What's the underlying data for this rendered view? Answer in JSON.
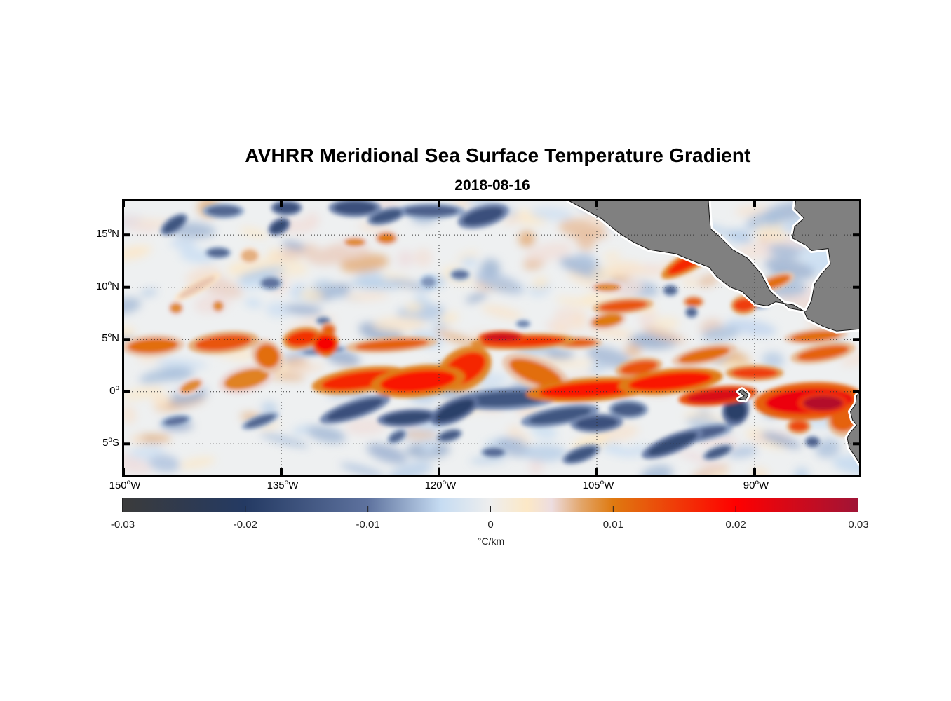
{
  "title": "AVHRR Meridional Sea Surface Temperature Gradient",
  "subtitle": "2018-08-16",
  "chart_data": {
    "type": "heatmap",
    "title": "AVHRR Meridional Sea Surface Temperature Gradient",
    "subtitle": "2018-08-16",
    "projection": "equirectangular",
    "lon_range": [
      -150,
      -80
    ],
    "lat_range": [
      -8,
      18.3
    ],
    "grid": true,
    "x_ticks": [
      {
        "value": -150,
        "num": "150",
        "hemi": "W"
      },
      {
        "value": -135,
        "num": "135",
        "hemi": "W"
      },
      {
        "value": -120,
        "num": "120",
        "hemi": "W"
      },
      {
        "value": -105,
        "num": "105",
        "hemi": "W"
      },
      {
        "value": -90,
        "num": "90",
        "hemi": "W"
      }
    ],
    "y_ticks": [
      {
        "value": 15,
        "num": "15",
        "hemi": "N"
      },
      {
        "value": 10,
        "num": "10",
        "hemi": "N"
      },
      {
        "value": 5,
        "num": "5",
        "hemi": "N"
      },
      {
        "value": 0,
        "num": "0",
        "hemi": ""
      },
      {
        "value": -5,
        "num": "5",
        "hemi": "S"
      }
    ],
    "colorbar": {
      "range": [
        -0.03,
        0.03
      ],
      "ticks": [
        "-0.03",
        "-0.02",
        "-0.01",
        "0",
        "0.01",
        "0.02",
        "0.03"
      ],
      "tick_values": [
        -0.03,
        -0.02,
        -0.01,
        0,
        0.01,
        0.02,
        0.03
      ],
      "label": "°C/km",
      "colormap": [
        [
          -0.03,
          "#3b3b3b"
        ],
        [
          -0.02,
          "#243a63"
        ],
        [
          -0.01,
          "#5e729e"
        ],
        [
          -0.004,
          "#c6dcf2"
        ],
        [
          0,
          "#eeeeee"
        ],
        [
          0.003,
          "#fce8c6"
        ],
        [
          0.005,
          "#eddde0"
        ],
        [
          0.0075,
          "#e2a467"
        ],
        [
          0.01,
          "#df7a10"
        ],
        [
          0.02,
          "#ff0000"
        ],
        [
          0.03,
          "#a01436"
        ]
      ]
    },
    "land_color": "#808080",
    "land": [
      [
        [
          -107.7,
          18.3
        ],
        [
          -104.6,
          16.6
        ],
        [
          -102.9,
          15.2
        ],
        [
          -101.5,
          14.3
        ],
        [
          -100.0,
          13.6
        ],
        [
          -97.5,
          13.2
        ],
        [
          -95.6,
          12.4
        ],
        [
          -94.3,
          11.9
        ],
        [
          -93.6,
          11.0
        ],
        [
          -92.3,
          10.0
        ],
        [
          -91.2,
          9.6
        ],
        [
          -89.9,
          8.4
        ],
        [
          -88.8,
          8.2
        ],
        [
          -88.0,
          8.6
        ],
        [
          -86.3,
          8.3
        ],
        [
          -85.3,
          7.7
        ],
        [
          -85.0,
          7.0
        ],
        [
          -83.4,
          6.2
        ],
        [
          -82.2,
          5.8
        ],
        [
          -80.0,
          6.0
        ],
        [
          -80.0,
          18.3
        ],
        [
          -86.1,
          18.3
        ],
        [
          -86.2,
          17.5
        ],
        [
          -85.3,
          16.6
        ],
        [
          -86.2,
          15.8
        ],
        [
          -86.4,
          14.7
        ],
        [
          -85.1,
          14.0
        ],
        [
          -84.6,
          13.5
        ],
        [
          -83.9,
          13.6
        ],
        [
          -83.0,
          13.7
        ],
        [
          -82.8,
          12.2
        ],
        [
          -83.6,
          11.3
        ],
        [
          -84.3,
          10.3
        ],
        [
          -84.6,
          8.7
        ],
        [
          -85.1,
          7.7
        ],
        [
          -86.7,
          8.0
        ],
        [
          -88.5,
          9.6
        ],
        [
          -89.4,
          11.3
        ],
        [
          -90.7,
          12.8
        ],
        [
          -92.1,
          13.6
        ],
        [
          -93.4,
          14.9
        ],
        [
          -94.2,
          15.6
        ],
        [
          -94.3,
          16.8
        ],
        [
          -94.4,
          18.3
        ]
      ],
      [
        [
          -80.0,
          0.0
        ],
        [
          -80.3,
          -0.4
        ],
        [
          -80.4,
          -1.2
        ],
        [
          -80.9,
          -1.9
        ],
        [
          -80.7,
          -2.7
        ],
        [
          -80.3,
          -3.2
        ],
        [
          -80.9,
          -3.9
        ],
        [
          -81.2,
          -4.4
        ],
        [
          -81.0,
          -5.4
        ],
        [
          -80.5,
          -6.1
        ],
        [
          -80.2,
          -6.6
        ],
        [
          -80.0,
          -6.9
        ]
      ],
      [
        [
          -91.2,
          0.2
        ],
        [
          -90.6,
          -0.3
        ],
        [
          -90.9,
          -0.8
        ],
        [
          -91.5,
          -0.7
        ],
        [
          -91.0,
          -0.4
        ],
        [
          -91.5,
          0.0
        ]
      ]
    ],
    "blobs": [
      {
        "lon": -147.2,
        "lat": 4.4,
        "rx": 2.4,
        "ry": 0.7,
        "rot": -3,
        "v": 0.011
      },
      {
        "lon": -140.5,
        "lat": 4.7,
        "rx": 2.7,
        "ry": 0.7,
        "rot": -6,
        "v": 0.013
      },
      {
        "lon": -136.3,
        "lat": 3.4,
        "rx": 1.1,
        "ry": 1.2,
        "rot": -40,
        "v": 0.011
      },
      {
        "lon": -138.3,
        "lat": 1.2,
        "rx": 2.2,
        "ry": 0.9,
        "rot": -14,
        "v": 0.0095
      },
      {
        "lon": -143.6,
        "lat": 0.5,
        "rx": 1.1,
        "ry": 0.5,
        "rot": -25,
        "v": 0.009
      },
      {
        "lon": -133.0,
        "lat": 5.1,
        "rx": 1.5,
        "ry": 0.7,
        "rot": -10,
        "v": 0.016
      },
      {
        "lon": -130.8,
        "lat": 4.6,
        "rx": 1.0,
        "ry": 0.8,
        "rot": 0,
        "v": 0.021
      },
      {
        "lon": -130.5,
        "lat": 5.9,
        "rx": 0.6,
        "ry": 0.5,
        "rot": 0,
        "v": 0.012
      },
      {
        "lon": -124.5,
        "lat": 4.5,
        "rx": 3.5,
        "ry": 0.5,
        "rot": -4,
        "v": 0.012
      },
      {
        "lon": -127.5,
        "lat": 1.1,
        "rx": 3.7,
        "ry": 0.8,
        "rot": -8,
        "v": 0.017
      },
      {
        "lon": -122.0,
        "lat": 1.0,
        "rx": 3.6,
        "ry": 1.0,
        "rot": -6,
        "v": 0.018
      },
      {
        "lon": -117.6,
        "lat": 2.2,
        "rx": 2.2,
        "ry": 1.3,
        "rot": -30,
        "v": 0.017
      },
      {
        "lon": -112.0,
        "lat": 4.8,
        "rx": 4.0,
        "ry": 0.5,
        "rot": -2,
        "v": 0.016
      },
      {
        "lon": -114.0,
        "lat": 5.2,
        "rx": 1.8,
        "ry": 0.4,
        "rot": 0,
        "v": 0.025
      },
      {
        "lon": -107.0,
        "lat": 4.7,
        "rx": 2.0,
        "ry": 0.4,
        "rot": 0,
        "v": 0.012
      },
      {
        "lon": -110.8,
        "lat": 1.8,
        "rx": 2.7,
        "ry": 1.0,
        "rot": 22,
        "v": 0.011
      },
      {
        "lon": -105.5,
        "lat": 0.2,
        "rx": 5.0,
        "ry": 0.75,
        "rot": -4,
        "v": 0.018
      },
      {
        "lon": -98.0,
        "lat": 1.0,
        "rx": 4.0,
        "ry": 0.8,
        "rot": -6,
        "v": 0.018
      },
      {
        "lon": -101.0,
        "lat": 2.3,
        "rx": 1.8,
        "ry": 0.6,
        "rot": -10,
        "v": 0.013
      },
      {
        "lon": -93.5,
        "lat": -0.4,
        "rx": 3.0,
        "ry": 0.6,
        "rot": -6,
        "v": 0.024
      },
      {
        "lon": -90.0,
        "lat": 1.8,
        "rx": 2.2,
        "ry": 0.5,
        "rot": 0,
        "v": 0.015
      },
      {
        "lon": -84.8,
        "lat": -0.9,
        "rx": 4.2,
        "ry": 1.2,
        "rot": -3,
        "v": 0.022
      },
      {
        "lon": -83.5,
        "lat": -1.1,
        "rx": 1.9,
        "ry": 0.7,
        "rot": 0,
        "v": 0.028
      },
      {
        "lon": -81.6,
        "lat": -2.8,
        "rx": 1.2,
        "ry": 1.0,
        "rot": 0,
        "v": 0.012
      },
      {
        "lon": -85.8,
        "lat": -3.3,
        "rx": 0.9,
        "ry": 0.5,
        "rot": 0,
        "v": 0.014
      },
      {
        "lon": -83.5,
        "lat": 3.7,
        "rx": 2.5,
        "ry": 0.6,
        "rot": -10,
        "v": 0.012
      },
      {
        "lon": -94.8,
        "lat": 3.5,
        "rx": 2.5,
        "ry": 0.6,
        "rot": -12,
        "v": 0.011
      },
      {
        "lon": -96.0,
        "lat": 12.6,
        "rx": 2.6,
        "ry": 0.6,
        "rot": -30,
        "v": 0.017
      },
      {
        "lon": -102.5,
        "lat": 8.2,
        "rx": 2.3,
        "ry": 0.5,
        "rot": -5,
        "v": 0.013
      },
      {
        "lon": -91.0,
        "lat": 8.3,
        "rx": 1.0,
        "ry": 0.6,
        "rot": -5,
        "v": 0.015
      },
      {
        "lon": -95.8,
        "lat": 8.6,
        "rx": 0.8,
        "ry": 0.4,
        "rot": 0,
        "v": 0.012
      },
      {
        "lon": -88.0,
        "lat": 10.5,
        "rx": 1.5,
        "ry": 0.5,
        "rot": -20,
        "v": 0.011
      },
      {
        "lon": -84.2,
        "lat": 5.3,
        "rx": 2.4,
        "ry": 0.5,
        "rot": -5,
        "v": 0.011
      },
      {
        "lon": -104.0,
        "lat": 10.0,
        "rx": 1.3,
        "ry": 0.4,
        "rot": 0,
        "v": 0.009
      },
      {
        "lon": -104.0,
        "lat": 6.8,
        "rx": 1.5,
        "ry": 0.6,
        "rot": -10,
        "v": 0.01
      },
      {
        "lon": -125.0,
        "lat": 14.7,
        "rx": 0.9,
        "ry": 0.5,
        "rot": 0,
        "v": 0.01
      },
      {
        "lon": -128.0,
        "lat": 14.3,
        "rx": 1.0,
        "ry": 0.4,
        "rot": 0,
        "v": 0.009
      },
      {
        "lon": -138.0,
        "lat": 13.0,
        "rx": 0.8,
        "ry": 0.6,
        "rot": 0,
        "v": 0.007
      },
      {
        "lon": -145.0,
        "lat": 8.0,
        "rx": 0.6,
        "ry": 0.5,
        "rot": 0,
        "v": 0.009
      },
      {
        "lon": -143.0,
        "lat": 10.0,
        "rx": 2.0,
        "ry": 0.4,
        "rot": -30,
        "v": 0.006
      },
      {
        "lon": -141.0,
        "lat": 8.2,
        "rx": 0.5,
        "ry": 0.5,
        "rot": 0,
        "v": 0.009
      },
      {
        "lon": -121.0,
        "lat": 10.5,
        "rx": 0.7,
        "ry": 0.5,
        "rot": 0,
        "v": -0.008
      },
      {
        "lon": -145.2,
        "lat": 16.0,
        "rx": 1.2,
        "ry": 0.5,
        "rot": -35,
        "v": -0.015
      },
      {
        "lon": -140.5,
        "lat": 17.3,
        "rx": 1.6,
        "ry": 0.5,
        "rot": 0,
        "v": -0.012
      },
      {
        "lon": -134.5,
        "lat": 17.6,
        "rx": 1.2,
        "ry": 0.5,
        "rot": 0,
        "v": -0.016
      },
      {
        "lon": -135.2,
        "lat": 15.8,
        "rx": 0.9,
        "ry": 0.5,
        "rot": -30,
        "v": -0.017
      },
      {
        "lon": -128.0,
        "lat": 17.6,
        "rx": 2.0,
        "ry": 0.6,
        "rot": 0,
        "v": -0.016
      },
      {
        "lon": -125.0,
        "lat": 16.8,
        "rx": 1.5,
        "ry": 0.5,
        "rot": -15,
        "v": -0.015
      },
      {
        "lon": -120.8,
        "lat": 17.3,
        "rx": 2.6,
        "ry": 0.5,
        "rot": 0,
        "v": -0.013
      },
      {
        "lon": -115.8,
        "lat": 16.8,
        "rx": 2.0,
        "ry": 0.7,
        "rot": -15,
        "v": -0.016
      },
      {
        "lon": -141.0,
        "lat": 13.3,
        "rx": 1.0,
        "ry": 0.4,
        "rot": 0,
        "v": -0.012
      },
      {
        "lon": -136.0,
        "lat": 10.4,
        "rx": 0.9,
        "ry": 0.5,
        "rot": 0,
        "v": -0.01
      },
      {
        "lon": -118.0,
        "lat": 11.2,
        "rx": 0.8,
        "ry": 0.4,
        "rot": 0,
        "v": -0.01
      },
      {
        "lon": -112.0,
        "lat": 6.5,
        "rx": 0.6,
        "ry": 0.3,
        "rot": 0,
        "v": -0.009
      },
      {
        "lon": -131.0,
        "lat": 6.8,
        "rx": 0.6,
        "ry": 0.3,
        "rot": 0,
        "v": -0.01
      },
      {
        "lon": -98.0,
        "lat": 9.7,
        "rx": 0.6,
        "ry": 0.4,
        "rot": 0,
        "v": -0.012
      },
      {
        "lon": -96.0,
        "lat": 7.6,
        "rx": 0.5,
        "ry": 0.4,
        "rot": 0,
        "v": -0.012
      },
      {
        "lon": -90.0,
        "lat": 8.3,
        "rx": 1.2,
        "ry": 0.3,
        "rot": 0,
        "v": -0.009
      },
      {
        "lon": -131.0,
        "lat": 3.9,
        "rx": 2.0,
        "ry": 0.3,
        "rot": -5,
        "v": -0.009
      },
      {
        "lon": -128.0,
        "lat": -1.7,
        "rx": 2.8,
        "ry": 0.6,
        "rot": -18,
        "v": -0.016
      },
      {
        "lon": -123.0,
        "lat": -2.5,
        "rx": 2.3,
        "ry": 0.55,
        "rot": -5,
        "v": -0.017
      },
      {
        "lon": -118.5,
        "lat": -1.8,
        "rx": 2.0,
        "ry": 0.7,
        "rot": -25,
        "v": -0.019
      },
      {
        "lon": -113.5,
        "lat": -0.7,
        "rx": 4.0,
        "ry": 0.7,
        "rot": -3,
        "v": -0.015
      },
      {
        "lon": -108.5,
        "lat": -2.3,
        "rx": 3.0,
        "ry": 0.6,
        "rot": -10,
        "v": -0.015
      },
      {
        "lon": -105.0,
        "lat": -3.0,
        "rx": 2.0,
        "ry": 0.6,
        "rot": -3,
        "v": -0.016
      },
      {
        "lon": -102.0,
        "lat": -1.7,
        "rx": 1.5,
        "ry": 0.6,
        "rot": 0,
        "v": -0.014
      },
      {
        "lon": -97.8,
        "lat": -5.0,
        "rx": 2.5,
        "ry": 0.6,
        "rot": -22,
        "v": -0.017
      },
      {
        "lon": -93.5,
        "lat": -5.8,
        "rx": 1.2,
        "ry": 0.4,
        "rot": -20,
        "v": -0.014
      },
      {
        "lon": -91.8,
        "lat": -1.8,
        "rx": 1.0,
        "ry": 1.0,
        "rot": 20,
        "v": -0.019
      },
      {
        "lon": -95.0,
        "lat": -4.0,
        "rx": 2.4,
        "ry": 0.5,
        "rot": -12,
        "v": -0.013
      },
      {
        "lon": -106.5,
        "lat": -6.0,
        "rx": 1.5,
        "ry": 0.5,
        "rot": -20,
        "v": -0.015
      },
      {
        "lon": -119.0,
        "lat": -4.2,
        "rx": 1.0,
        "ry": 0.4,
        "rot": -15,
        "v": -0.014
      },
      {
        "lon": -114.8,
        "lat": -5.8,
        "rx": 1.0,
        "ry": 0.4,
        "rot": 0,
        "v": -0.011
      },
      {
        "lon": -137.0,
        "lat": -2.8,
        "rx": 1.5,
        "ry": 0.4,
        "rot": -20,
        "v": -0.012
      },
      {
        "lon": -145.0,
        "lat": -2.8,
        "rx": 1.2,
        "ry": 0.4,
        "rot": -10,
        "v": -0.01
      },
      {
        "lon": -124.0,
        "lat": -4.3,
        "rx": 0.8,
        "ry": 0.4,
        "rot": -30,
        "v": -0.012
      },
      {
        "lon": -84.5,
        "lat": -4.8,
        "rx": 0.6,
        "ry": 0.4,
        "rot": 0,
        "v": -0.013
      },
      {
        "lon": -97.0,
        "lat": 1.1,
        "rx": 0.6,
        "ry": 0.3,
        "rot": 0,
        "v": -0.008
      }
    ]
  }
}
